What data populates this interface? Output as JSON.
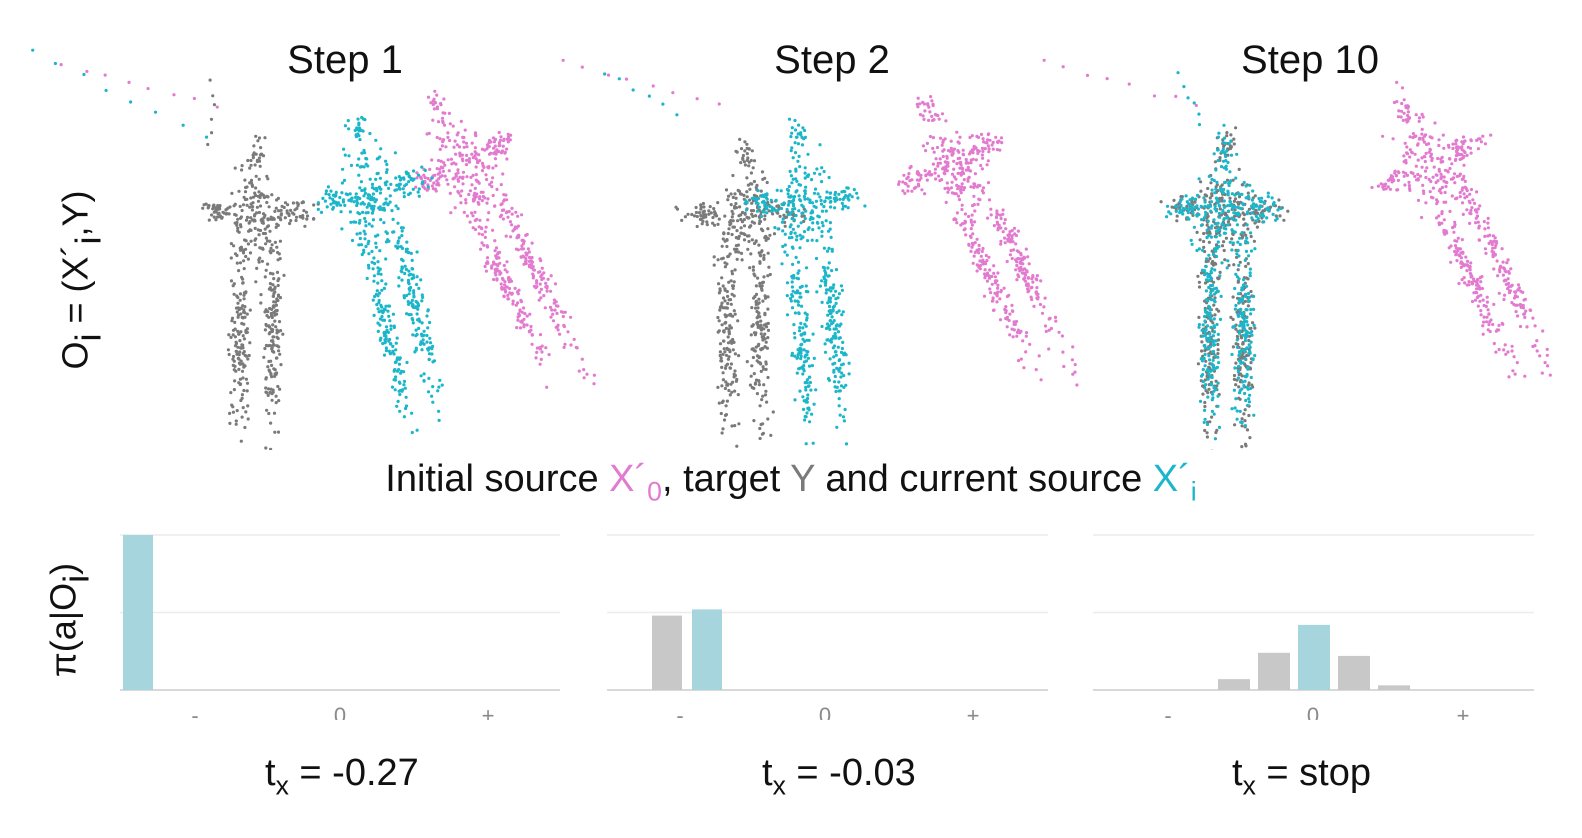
{
  "steps": [
    {
      "title": "Step 1",
      "tx_label": "-0.27"
    },
    {
      "title": "Step 2",
      "tx_label": "-0.03"
    },
    {
      "title": "Step 10",
      "tx_label": "stop"
    }
  ],
  "ylabel_top": "O",
  "ylabel_top_sub": "i",
  "ylabel_top_rest": " = (X´",
  "ylabel_top_sub2": "i",
  "ylabel_top_end": ",Y)",
  "ylabel_bottom": "π(a|O",
  "ylabel_bottom_sub": "i",
  "ylabel_bottom_end": ")",
  "caption": {
    "part1": "Initial source ",
    "x0": "X´",
    "x0_sub": "0",
    "part2": ", target ",
    "y": "Y",
    "part3": " and current source ",
    "xi": "X´",
    "xi_sub": "i"
  },
  "tx_prefix": "t",
  "tx_sub": "x",
  "tx_eq": " = ",
  "colors": {
    "source_initial": "#e27bcf",
    "target": "#7a7a7a",
    "source_current": "#1bb6c9",
    "bar_selected": "#a7d5de",
    "bar_other": "#c8c8c8"
  },
  "chart_data": [
    {
      "type": "bar",
      "title": "Step 1",
      "ylabel": "π(a|O_i)",
      "xlabel": "t_x = -0.27",
      "tick_labels": [
        "-",
        "0",
        "+"
      ],
      "ylim": [
        0,
        1
      ],
      "grid": true,
      "series": [
        {
          "values": [
            1.0,
            0,
            0,
            0,
            0,
            0,
            0,
            0,
            0,
            0,
            0
          ]
        }
      ],
      "selected_index": 0
    },
    {
      "type": "bar",
      "title": "Step 2",
      "xlabel": "t_x = -0.03",
      "tick_labels": [
        "-",
        "0",
        "+"
      ],
      "ylim": [
        0,
        1
      ],
      "grid": true,
      "series": [
        {
          "values": [
            0,
            0.48,
            0.52,
            0,
            0,
            0,
            0,
            0,
            0,
            0,
            0
          ]
        }
      ],
      "selected_index": 2
    },
    {
      "type": "bar",
      "title": "Step 10",
      "xlabel": "t_x = stop",
      "tick_labels": [
        "-",
        "0",
        "+"
      ],
      "ylim": [
        0,
        1
      ],
      "grid": true,
      "series": [
        {
          "values": [
            0,
            0,
            0.07,
            0.24,
            0.42,
            0.22,
            0.03,
            0,
            0,
            0,
            0
          ]
        }
      ],
      "selected_index": 4
    }
  ]
}
